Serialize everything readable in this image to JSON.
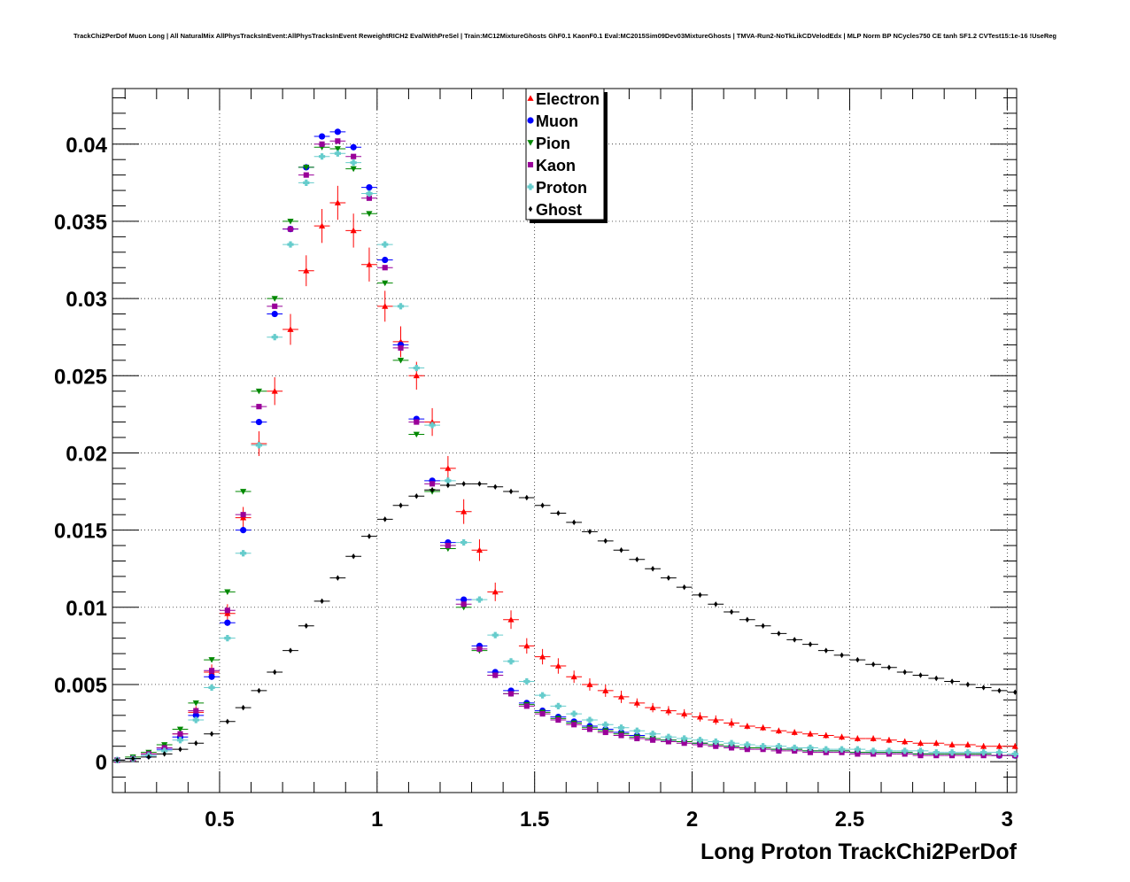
{
  "chart_data": {
    "type": "scatter",
    "title": "TrackChi2PerDof Muon Long | All NaturalMix AllPhysTracksInEvent:AllPhysTracksInEvent ReweightRICH2 EvalWithPreSel | Train:MC12MixtureGhosts GhF0.1 KaonF0.1 Eval:MC2015Sim09Dev03MixtureGhosts | TMVA-Run2-NoTkLikCDVelodEdx | MLP Norm BP NCycles750 CE tanh SF1.2 CVTest15:1e-16 !UseReg",
    "xlabel": "Long Proton TrackChi2PerDof",
    "ylabel": "",
    "xlim": [
      0.16,
      3.03
    ],
    "ylim": [
      -0.002,
      0.0436
    ],
    "x_ticks": [
      {
        "value": 0.5,
        "label": "0.5"
      },
      {
        "value": 1.0,
        "label": "1"
      },
      {
        "value": 1.5,
        "label": "1.5"
      },
      {
        "value": 2.0,
        "label": "2"
      },
      {
        "value": 2.5,
        "label": "2.5"
      },
      {
        "value": 3.0,
        "label": "3"
      }
    ],
    "y_ticks": [
      {
        "value": 0.0,
        "label": "0"
      },
      {
        "value": 0.005,
        "label": "0.005"
      },
      {
        "value": 0.01,
        "label": "0.01"
      },
      {
        "value": 0.015,
        "label": "0.015"
      },
      {
        "value": 0.02,
        "label": "0.02"
      },
      {
        "value": 0.025,
        "label": "0.025"
      },
      {
        "value": 0.03,
        "label": "0.03"
      },
      {
        "value": 0.035,
        "label": "0.035"
      },
      {
        "value": 0.04,
        "label": "0.04"
      }
    ],
    "grid": true,
    "legend_position": "top-center",
    "series": [
      {
        "name": "Electron",
        "color": "#ff0000",
        "marker": "triangle-up",
        "x": [
          0.175,
          0.225,
          0.275,
          0.325,
          0.375,
          0.425,
          0.475,
          0.525,
          0.575,
          0.625,
          0.675,
          0.725,
          0.775,
          0.825,
          0.875,
          0.925,
          0.975,
          1.025,
          1.075,
          1.125,
          1.175,
          1.225,
          1.275,
          1.325,
          1.375,
          1.425,
          1.475,
          1.525,
          1.575,
          1.625,
          1.675,
          1.725,
          1.775,
          1.825,
          1.875,
          1.925,
          1.975,
          2.025,
          2.075,
          2.125,
          2.175,
          2.225,
          2.275,
          2.325,
          2.375,
          2.425,
          2.475,
          2.525,
          2.575,
          2.625,
          2.675,
          2.725,
          2.775,
          2.825,
          2.875,
          2.925,
          2.975,
          3.025
        ],
        "y": [
          0.0001,
          0.0002,
          0.0005,
          0.0009,
          0.0018,
          0.0032,
          0.0058,
          0.0096,
          0.0158,
          0.0206,
          0.024,
          0.028,
          0.0318,
          0.0347,
          0.0362,
          0.0344,
          0.0322,
          0.0295,
          0.0272,
          0.025,
          0.022,
          0.019,
          0.0162,
          0.0137,
          0.011,
          0.0092,
          0.0075,
          0.0068,
          0.0062,
          0.0055,
          0.005,
          0.0046,
          0.0042,
          0.0038,
          0.0035,
          0.0033,
          0.0031,
          0.0029,
          0.0027,
          0.0025,
          0.0023,
          0.0022,
          0.002,
          0.0019,
          0.0018,
          0.0017,
          0.0016,
          0.0015,
          0.0015,
          0.0014,
          0.0013,
          0.0012,
          0.0012,
          0.0011,
          0.0011,
          0.001,
          0.001,
          0.001
        ],
        "err": [
          5e-05,
          0.0001,
          0.0001,
          0.0002,
          0.0003,
          0.0004,
          0.0005,
          0.0006,
          0.0007,
          0.0008,
          0.0009,
          0.001,
          0.001,
          0.0011,
          0.0011,
          0.0011,
          0.0011,
          0.001,
          0.001,
          0.0009,
          0.0009,
          0.0008,
          0.0008,
          0.0007,
          0.0006,
          0.0006,
          0.0005,
          0.0005,
          0.0005,
          0.0004,
          0.0004,
          0.0004,
          0.0004,
          0.0003,
          0.0003,
          0.0003,
          0.0003,
          0.0003,
          0.0003,
          0.0003,
          0.0002,
          0.0002,
          0.0002,
          0.0002,
          0.0002,
          0.0002,
          0.0002,
          0.0002,
          0.0002,
          0.0002,
          0.0002,
          0.0002,
          0.0002,
          0.0002,
          0.0002,
          0.0002,
          0.0002,
          0.0002
        ]
      },
      {
        "name": "Muon",
        "color": "#0000ff",
        "marker": "circle",
        "x": [
          0.175,
          0.225,
          0.275,
          0.325,
          0.375,
          0.425,
          0.475,
          0.525,
          0.575,
          0.625,
          0.675,
          0.725,
          0.775,
          0.825,
          0.875,
          0.925,
          0.975,
          1.025,
          1.075,
          1.125,
          1.175,
          1.225,
          1.275,
          1.325,
          1.375,
          1.425,
          1.475,
          1.525,
          1.575,
          1.625,
          1.675,
          1.725,
          1.775,
          1.825,
          1.875,
          1.925,
          1.975,
          2.025,
          2.075,
          2.125,
          2.175,
          2.225,
          2.275,
          2.325,
          2.375,
          2.425,
          2.475,
          2.525,
          2.575,
          2.625,
          2.675,
          2.725,
          2.775,
          2.825,
          2.875,
          2.925,
          2.975,
          3.025
        ],
        "y": [
          0.0001,
          0.0002,
          0.0004,
          0.0008,
          0.0016,
          0.003,
          0.0055,
          0.009,
          0.015,
          0.022,
          0.029,
          0.0345,
          0.0385,
          0.0405,
          0.0408,
          0.0398,
          0.0372,
          0.0325,
          0.027,
          0.0222,
          0.0182,
          0.0142,
          0.0105,
          0.0075,
          0.0058,
          0.0046,
          0.0038,
          0.0033,
          0.0029,
          0.0026,
          0.0023,
          0.0021,
          0.0019,
          0.0017,
          0.0015,
          0.0014,
          0.0013,
          0.0012,
          0.0011,
          0.001,
          0.0009,
          0.0009,
          0.0008,
          0.0008,
          0.0007,
          0.0007,
          0.0007,
          0.0006,
          0.0006,
          0.0006,
          0.0006,
          0.0005,
          0.0005,
          0.0005,
          0.0005,
          0.0005,
          0.0004,
          0.0004
        ],
        "err": []
      },
      {
        "name": "Pion",
        "color": "#008800",
        "marker": "triangle-down",
        "x": [
          0.175,
          0.225,
          0.275,
          0.325,
          0.375,
          0.425,
          0.475,
          0.525,
          0.575,
          0.625,
          0.675,
          0.725,
          0.775,
          0.825,
          0.875,
          0.925,
          0.975,
          1.025,
          1.075,
          1.125,
          1.175,
          1.225,
          1.275,
          1.325,
          1.375,
          1.425,
          1.475,
          1.525,
          1.575,
          1.625,
          1.675,
          1.725,
          1.775,
          1.825,
          1.875,
          1.925,
          1.975,
          2.025,
          2.075,
          2.125,
          2.175,
          2.225,
          2.275,
          2.325,
          2.375,
          2.425,
          2.475,
          2.525,
          2.575,
          2.625,
          2.675,
          2.725,
          2.775,
          2.825,
          2.875,
          2.925,
          2.975,
          3.025
        ],
        "y": [
          0.0001,
          0.0003,
          0.0006,
          0.0011,
          0.0021,
          0.0038,
          0.0066,
          0.011,
          0.0175,
          0.024,
          0.03,
          0.035,
          0.0385,
          0.0398,
          0.0397,
          0.0384,
          0.0355,
          0.031,
          0.026,
          0.0212,
          0.0175,
          0.0138,
          0.01,
          0.0072,
          0.0056,
          0.0044,
          0.0037,
          0.0032,
          0.0028,
          0.0025,
          0.0022,
          0.002,
          0.0018,
          0.0016,
          0.0015,
          0.0014,
          0.0013,
          0.0012,
          0.0011,
          0.001,
          0.0009,
          0.0009,
          0.0008,
          0.0008,
          0.0007,
          0.0007,
          0.0007,
          0.0006,
          0.0006,
          0.0006,
          0.0006,
          0.0005,
          0.0005,
          0.0005,
          0.0005,
          0.0005,
          0.0004,
          0.0004
        ],
        "err": []
      },
      {
        "name": "Kaon",
        "color": "#990099",
        "marker": "square",
        "x": [
          0.175,
          0.225,
          0.275,
          0.325,
          0.375,
          0.425,
          0.475,
          0.525,
          0.575,
          0.625,
          0.675,
          0.725,
          0.775,
          0.825,
          0.875,
          0.925,
          0.975,
          1.025,
          1.075,
          1.125,
          1.175,
          1.225,
          1.275,
          1.325,
          1.375,
          1.425,
          1.475,
          1.525,
          1.575,
          1.625,
          1.675,
          1.725,
          1.775,
          1.825,
          1.875,
          1.925,
          1.975,
          2.025,
          2.075,
          2.125,
          2.175,
          2.225,
          2.275,
          2.325,
          2.375,
          2.425,
          2.475,
          2.525,
          2.575,
          2.625,
          2.675,
          2.725,
          2.775,
          2.825,
          2.875,
          2.925,
          2.975,
          3.025
        ],
        "y": [
          0.0001,
          0.0002,
          0.0005,
          0.0009,
          0.0018,
          0.0033,
          0.0059,
          0.0098,
          0.016,
          0.023,
          0.0295,
          0.0345,
          0.038,
          0.04,
          0.0402,
          0.0392,
          0.0365,
          0.032,
          0.0268,
          0.022,
          0.018,
          0.014,
          0.0102,
          0.0073,
          0.0056,
          0.0044,
          0.0036,
          0.0031,
          0.0027,
          0.0024,
          0.0021,
          0.0019,
          0.0017,
          0.0015,
          0.0014,
          0.0013,
          0.0012,
          0.0011,
          0.001,
          0.0009,
          0.0008,
          0.0008,
          0.0007,
          0.0007,
          0.0006,
          0.0006,
          0.0006,
          0.0005,
          0.0005,
          0.0005,
          0.0005,
          0.0004,
          0.0004,
          0.0004,
          0.0004,
          0.0004,
          0.0004,
          0.0004
        ],
        "err": []
      },
      {
        "name": "Proton",
        "color": "#66cccc",
        "marker": "cross",
        "x": [
          0.175,
          0.225,
          0.275,
          0.325,
          0.375,
          0.425,
          0.475,
          0.525,
          0.575,
          0.625,
          0.675,
          0.725,
          0.775,
          0.825,
          0.875,
          0.925,
          0.975,
          1.025,
          1.075,
          1.125,
          1.175,
          1.225,
          1.275,
          1.325,
          1.375,
          1.425,
          1.475,
          1.525,
          1.575,
          1.625,
          1.675,
          1.725,
          1.775,
          1.825,
          1.875,
          1.925,
          1.975,
          2.025,
          2.075,
          2.125,
          2.175,
          2.225,
          2.275,
          2.325,
          2.375,
          2.425,
          2.475,
          2.525,
          2.575,
          2.625,
          2.675,
          2.725,
          2.775,
          2.825,
          2.875,
          2.925,
          2.975,
          3.025
        ],
        "y": [
          0.0001,
          0.0002,
          0.0004,
          0.0007,
          0.0014,
          0.0027,
          0.0048,
          0.008,
          0.0135,
          0.0205,
          0.0275,
          0.0335,
          0.0375,
          0.0392,
          0.0394,
          0.0388,
          0.0368,
          0.0335,
          0.0295,
          0.0255,
          0.0218,
          0.0182,
          0.0142,
          0.0105,
          0.0082,
          0.0065,
          0.0052,
          0.0043,
          0.0036,
          0.0031,
          0.0027,
          0.0024,
          0.0022,
          0.002,
          0.0018,
          0.0016,
          0.0015,
          0.0014,
          0.0013,
          0.0012,
          0.0011,
          0.001,
          0.001,
          0.0009,
          0.0009,
          0.0008,
          0.0008,
          0.0008,
          0.0007,
          0.0007,
          0.0007,
          0.0007,
          0.0006,
          0.0006,
          0.0006,
          0.0006,
          0.0006,
          0.0005
        ],
        "err": []
      },
      {
        "name": "Ghost",
        "color": "#000000",
        "marker": "diamond",
        "x": [
          0.175,
          0.225,
          0.275,
          0.325,
          0.375,
          0.425,
          0.475,
          0.525,
          0.575,
          0.625,
          0.675,
          0.725,
          0.775,
          0.825,
          0.875,
          0.925,
          0.975,
          1.025,
          1.075,
          1.125,
          1.175,
          1.225,
          1.275,
          1.325,
          1.375,
          1.425,
          1.475,
          1.525,
          1.575,
          1.625,
          1.675,
          1.725,
          1.775,
          1.825,
          1.875,
          1.925,
          1.975,
          2.025,
          2.075,
          2.125,
          2.175,
          2.225,
          2.275,
          2.325,
          2.375,
          2.425,
          2.475,
          2.525,
          2.575,
          2.625,
          2.675,
          2.725,
          2.775,
          2.825,
          2.875,
          2.925,
          2.975,
          3.025
        ],
        "y": [
          0.0001,
          0.0002,
          0.0003,
          0.0005,
          0.0008,
          0.0012,
          0.0018,
          0.0026,
          0.0035,
          0.0046,
          0.0058,
          0.0072,
          0.0088,
          0.0104,
          0.0119,
          0.0133,
          0.0146,
          0.0157,
          0.0166,
          0.0172,
          0.0176,
          0.0179,
          0.018,
          0.018,
          0.0178,
          0.0175,
          0.0171,
          0.0166,
          0.0161,
          0.0155,
          0.0149,
          0.0143,
          0.0137,
          0.0131,
          0.0125,
          0.0119,
          0.0113,
          0.0108,
          0.0102,
          0.0097,
          0.0092,
          0.0088,
          0.0083,
          0.0079,
          0.0076,
          0.0072,
          0.0069,
          0.0066,
          0.0063,
          0.0061,
          0.0058,
          0.0056,
          0.0054,
          0.0052,
          0.005,
          0.0048,
          0.0046,
          0.0045
        ],
        "err": []
      }
    ]
  }
}
